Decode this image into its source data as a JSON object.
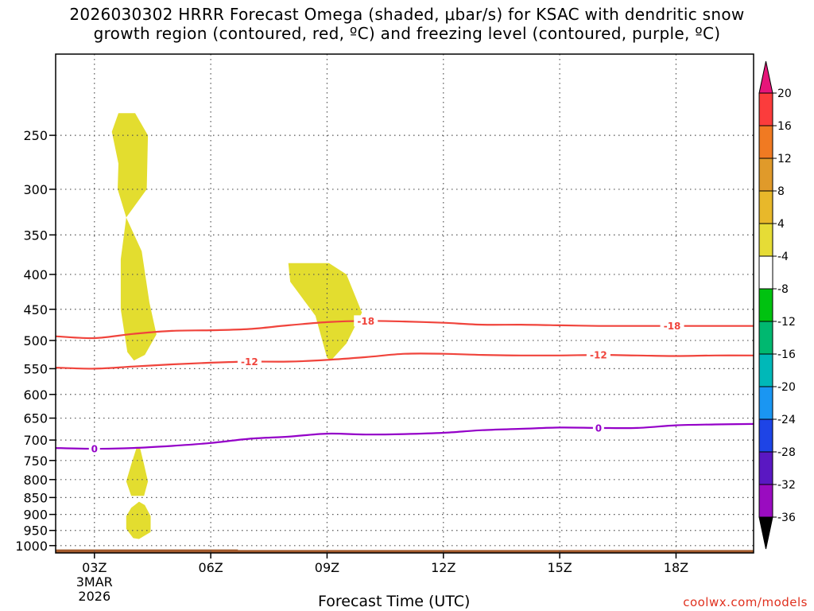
{
  "title": {
    "line1": "2026030302 HRRR Forecast Omega (shaded, μbar/s) for KSAC with dendritic snow",
    "line2": "growth region (contoured, red, ºC) and freezing level (contoured, purple, ºC)"
  },
  "credit": "coolwx.com/models",
  "chart_data": {
    "type": "heatmap",
    "title": "2026030302 HRRR Forecast Omega (shaded, μbar/s) for KSAC with dendritic snow growth region (contoured, red, ºC) and freezing level (contoured, purple, ºC)",
    "xlabel": "Forecast Time (UTC)",
    "ylabel": "",
    "x_range_hours": [
      2.0,
      20.0
    ],
    "y_log_pressure_range": [
      1025,
      190
    ],
    "x_ticks": [
      {
        "hour": 3,
        "label": "03Z",
        "sub1": "3MAR",
        "sub2": "2026"
      },
      {
        "hour": 6,
        "label": "06Z"
      },
      {
        "hour": 9,
        "label": "09Z"
      },
      {
        "hour": 12,
        "label": "12Z"
      },
      {
        "hour": 15,
        "label": "15Z"
      },
      {
        "hour": 18,
        "label": "18Z"
      }
    ],
    "y_ticks": [
      250,
      300,
      350,
      400,
      450,
      500,
      550,
      600,
      650,
      700,
      750,
      800,
      850,
      900,
      950,
      1000
    ],
    "grid": true,
    "grid_style": "dotted",
    "omega_shading": [
      {
        "class": "4 to 8",
        "color": "#e3dd2f",
        "region": "upper",
        "points": [
          [
            3.62,
            232
          ],
          [
            3.45,
            247
          ],
          [
            3.62,
            275
          ],
          [
            3.6,
            300
          ],
          [
            3.82,
            330
          ],
          [
            4.35,
            300
          ],
          [
            4.38,
            250
          ],
          [
            4.05,
            232
          ]
        ]
      },
      {
        "class": "4 to 8",
        "color": "#e3dd2f",
        "region": "mid",
        "points": [
          [
            3.82,
            330
          ],
          [
            3.68,
            380
          ],
          [
            3.68,
            450
          ],
          [
            3.85,
            520
          ],
          [
            4.02,
            535
          ],
          [
            4.3,
            525
          ],
          [
            4.6,
            490
          ],
          [
            4.42,
            440
          ],
          [
            4.22,
            370
          ]
        ]
      },
      {
        "class": "4 to 8",
        "color": "#e3dd2f",
        "region": "right",
        "points": [
          [
            8.0,
            385
          ],
          [
            8.05,
            410
          ],
          [
            8.7,
            460
          ],
          [
            9.0,
            530
          ],
          [
            9.1,
            535
          ],
          [
            9.5,
            505
          ],
          [
            9.9,
            455
          ],
          [
            9.5,
            400
          ],
          [
            9.05,
            385
          ]
        ]
      },
      {
        "class": "4 to 8",
        "color": "#e3dd2f",
        "region": "low-upper",
        "points": [
          [
            4.08,
            720
          ],
          [
            3.95,
            760
          ],
          [
            3.82,
            805
          ],
          [
            3.95,
            845
          ],
          [
            4.28,
            845
          ],
          [
            4.38,
            805
          ],
          [
            4.28,
            760
          ],
          [
            4.18,
            720
          ]
        ]
      },
      {
        "class": "4 to 8",
        "color": "#e3dd2f",
        "region": "low-lower",
        "points": [
          [
            4.15,
            862
          ],
          [
            3.95,
            880
          ],
          [
            3.82,
            905
          ],
          [
            3.82,
            945
          ],
          [
            4.0,
            975
          ],
          [
            4.15,
            978
          ],
          [
            4.45,
            955
          ],
          [
            4.45,
            905
          ],
          [
            4.3,
            872
          ]
        ]
      }
    ],
    "terrain": {
      "color": "#a35a2c",
      "top_pressure": 1015,
      "bump_end_hour": 6.7,
      "bump_top_pressure": 1013
    },
    "series": [
      {
        "name": "-18",
        "color": "#f0443c",
        "points": [
          [
            2,
            493
          ],
          [
            3,
            496
          ],
          [
            4,
            489
          ],
          [
            5,
            484
          ],
          [
            6,
            483
          ],
          [
            7,
            481
          ],
          [
            8,
            475
          ],
          [
            9,
            470
          ],
          [
            10,
            468
          ],
          [
            11,
            469
          ],
          [
            12,
            471
          ],
          [
            13,
            474
          ],
          [
            14,
            474
          ],
          [
            15,
            475
          ],
          [
            16,
            476
          ],
          [
            17,
            476
          ],
          [
            18,
            476
          ],
          [
            19,
            476
          ],
          [
            20,
            476
          ]
        ],
        "label_hours": [
          10.0,
          17.9
        ]
      },
      {
        "name": "-12",
        "color": "#f0443c",
        "points": [
          [
            2,
            548
          ],
          [
            3,
            550
          ],
          [
            4,
            546
          ],
          [
            5,
            542
          ],
          [
            6,
            539
          ],
          [
            7,
            537
          ],
          [
            8,
            537
          ],
          [
            9,
            534
          ],
          [
            10,
            529
          ],
          [
            11,
            523
          ],
          [
            12,
            523
          ],
          [
            13,
            525
          ],
          [
            14,
            526
          ],
          [
            15,
            526
          ],
          [
            16,
            525
          ],
          [
            17,
            526
          ],
          [
            18,
            527
          ],
          [
            19,
            526
          ],
          [
            20,
            526
          ]
        ],
        "label_hours": [
          7.0,
          16.0
        ]
      },
      {
        "name": "0",
        "color": "#9400c8",
        "points": [
          [
            2,
            719
          ],
          [
            3,
            721
          ],
          [
            4,
            719
          ],
          [
            5,
            714
          ],
          [
            6,
            707
          ],
          [
            7,
            697
          ],
          [
            8,
            692
          ],
          [
            9,
            685
          ],
          [
            10,
            687
          ],
          [
            11,
            686
          ],
          [
            12,
            683
          ],
          [
            13,
            677
          ],
          [
            14,
            674
          ],
          [
            15,
            671
          ],
          [
            16,
            672
          ],
          [
            17,
            672
          ],
          [
            18,
            666
          ],
          [
            19,
            664
          ],
          [
            20,
            663
          ]
        ],
        "label_hours": [
          3.0,
          16.0
        ]
      }
    ],
    "colorbar": {
      "labels": [
        "20",
        "16",
        "12",
        "8",
        "4",
        "-4",
        "-8",
        "-12",
        "-16",
        "-20",
        "-24",
        "-28",
        "-32",
        "-36"
      ],
      "colors": [
        "#fb3c3c",
        "#f07a22",
        "#e09a2a",
        "#e8b82a",
        "#e6dc36",
        "#ffffff",
        "#00c210",
        "#00b870",
        "#00b8b8",
        "#1a96f2",
        "#1e44e6",
        "#5a18c2",
        "#9a0cc0",
        "#a0a0a0"
      ],
      "top_triangle_color": "#e6157a",
      "bottom_triangle_color": "#000000"
    }
  }
}
